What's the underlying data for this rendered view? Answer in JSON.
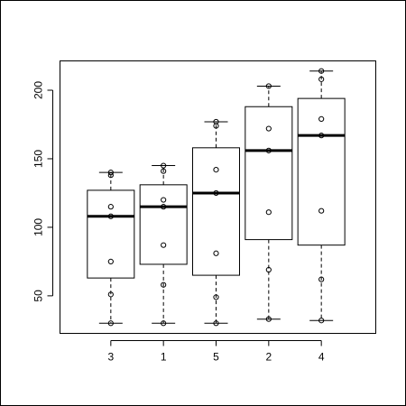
{
  "chart_data": {
    "type": "boxplot",
    "title": "",
    "xlabel": "",
    "ylabel": "",
    "categories": [
      "3",
      "1",
      "5",
      "2",
      "4"
    ],
    "boxes": [
      {
        "category": "3",
        "whisker_low": 30,
        "q1": 63,
        "median": 108,
        "q3": 127,
        "whisker_high": 140
      },
      {
        "category": "1",
        "whisker_low": 30,
        "q1": 73,
        "median": 115,
        "q3": 131,
        "whisker_high": 145
      },
      {
        "category": "5",
        "whisker_low": 30,
        "q1": 65,
        "median": 125,
        "q3": 158,
        "whisker_high": 177
      },
      {
        "category": "2",
        "whisker_low": 33,
        "q1": 91,
        "median": 156,
        "q3": 188,
        "whisker_high": 203
      },
      {
        "category": "4",
        "whisker_low": 32,
        "q1": 87,
        "median": 167,
        "q3": 194,
        "whisker_high": 214
      }
    ],
    "points": [
      {
        "category": "3",
        "values": [
          30,
          51,
          75,
          108,
          115,
          138,
          140
        ]
      },
      {
        "category": "1",
        "values": [
          30,
          58,
          87,
          115,
          120,
          141,
          145
        ]
      },
      {
        "category": "5",
        "values": [
          30,
          49,
          81,
          125,
          142,
          174,
          177
        ]
      },
      {
        "category": "2",
        "values": [
          33,
          69,
          111,
          156,
          172,
          203
        ]
      },
      {
        "category": "4",
        "values": [
          32,
          62,
          112,
          167,
          179,
          208,
          214
        ]
      }
    ],
    "yticks": [
      50,
      100,
      150,
      200
    ],
    "ylim": [
      22.6,
      221.4
    ],
    "grid": false,
    "legend": "none",
    "colors": {
      "stroke": "#000000",
      "background": "#ffffff"
    }
  }
}
